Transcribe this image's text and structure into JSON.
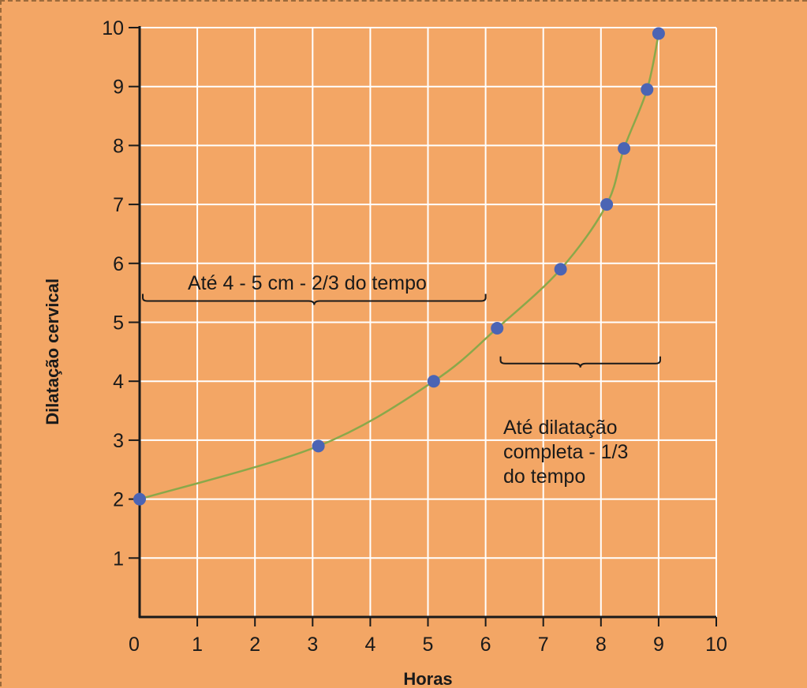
{
  "chart_data": {
    "type": "line",
    "title": "",
    "xlabel": "Horas",
    "ylabel": "Dilatação cervical",
    "xlim": [
      0,
      10
    ],
    "ylim": [
      0,
      10
    ],
    "grid": true,
    "x_ticks": [
      0,
      1,
      2,
      3,
      4,
      5,
      6,
      7,
      8,
      9,
      10
    ],
    "y_ticks": [
      1,
      2,
      3,
      4,
      5,
      6,
      7,
      8,
      9,
      10
    ],
    "series": [
      {
        "x": [
          0,
          3.1,
          5.1,
          6.2,
          7.3,
          8.1,
          8.4,
          8.8,
          9.0
        ],
        "y": [
          2,
          2.9,
          4,
          4.9,
          5.9,
          7,
          7.95,
          8.95,
          9.9
        ],
        "color": "#4b64b4",
        "line_color": "#8aa84a"
      }
    ],
    "annotations": [
      {
        "lines": [
          "Até 4 - 5 cm - 2/3 do tempo"
        ],
        "x_range": [
          0,
          6
        ]
      },
      {
        "lines": [
          "Até dilatação",
          "completa - 1/3",
          "do tempo"
        ],
        "x_range": [
          6.3,
          9
        ]
      }
    ],
    "colors": {
      "background": "#f3a665",
      "grid": "#ffffff",
      "axis": "#1a1a1a"
    }
  }
}
